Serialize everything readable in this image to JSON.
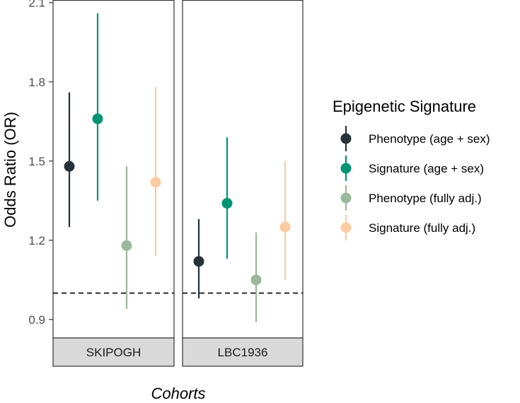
{
  "chart_data": {
    "type": "scatter",
    "subtype": "point-range (forest plot)",
    "ylabel": "Odds Ratio (OR)",
    "xlabel": "Cohorts",
    "ylim": [
      0.83,
      2.11
    ],
    "yticks": [
      0.9,
      1.2,
      1.5,
      1.8,
      2.1
    ],
    "ytick_labels": [
      "0.9",
      "1.2",
      "1.5",
      "1.8",
      "2.1"
    ],
    "reference_line": {
      "y": 1.0,
      "style": "dashed"
    },
    "facets": [
      "SKIPOGH",
      "LBC1936"
    ],
    "legend": {
      "title": "Epigenetic Signature",
      "placement": "right"
    },
    "series": [
      {
        "name": "Phenotype (age + sex)",
        "color": "#263238",
        "points": [
          {
            "facet": "SKIPOGH",
            "or": 1.48,
            "lower": 1.25,
            "upper": 1.76
          },
          {
            "facet": "LBC1936",
            "or": 1.12,
            "lower": 0.98,
            "upper": 1.28
          }
        ]
      },
      {
        "name": "Signature (age + sex)",
        "color": "#009473",
        "points": [
          {
            "facet": "SKIPOGH",
            "or": 1.66,
            "lower": 1.35,
            "upper": 2.06
          },
          {
            "facet": "LBC1936",
            "or": 1.34,
            "lower": 1.13,
            "upper": 1.59
          }
        ]
      },
      {
        "name": "Phenotype (fully adj.)",
        "color": "#9bb89a",
        "points": [
          {
            "facet": "SKIPOGH",
            "or": 1.18,
            "lower": 0.94,
            "upper": 1.48
          },
          {
            "facet": "LBC1936",
            "or": 1.05,
            "lower": 0.89,
            "upper": 1.23
          }
        ]
      },
      {
        "name": "Signature (fully adj.)",
        "color": "#fccba0",
        "points": [
          {
            "facet": "SKIPOGH",
            "or": 1.42,
            "lower": 1.14,
            "upper": 1.78
          },
          {
            "facet": "LBC1936",
            "or": 1.25,
            "lower": 1.05,
            "upper": 1.5
          }
        ]
      }
    ]
  }
}
